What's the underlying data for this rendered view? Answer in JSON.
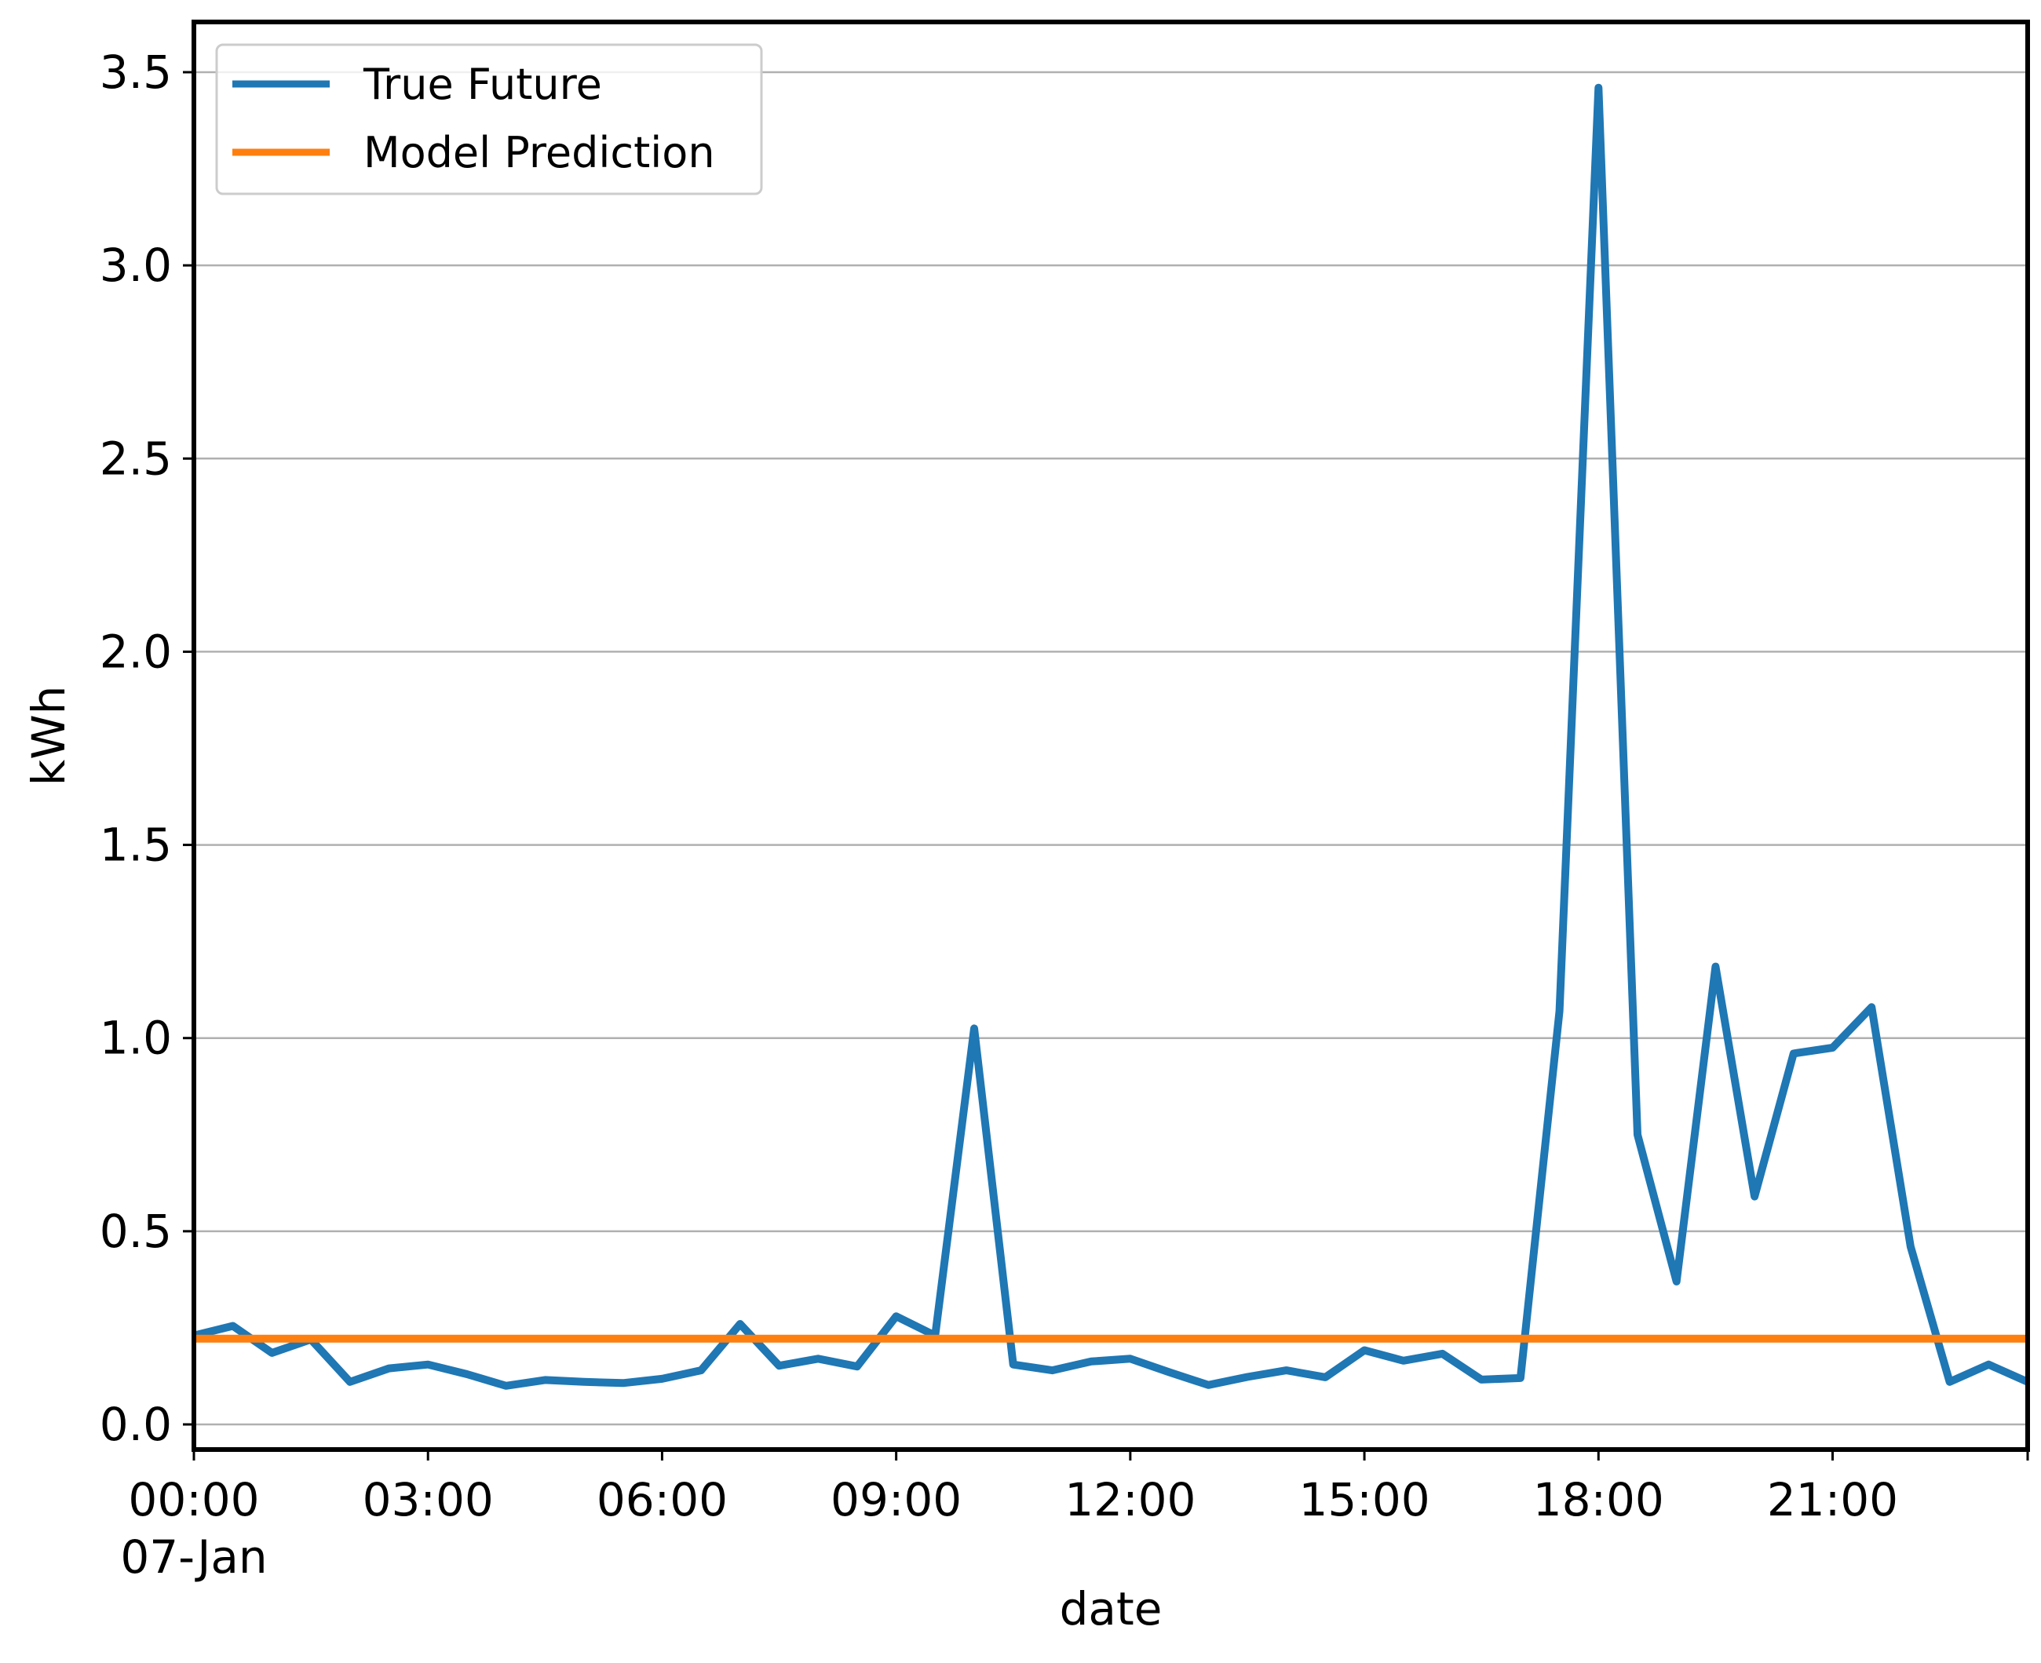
{
  "chart_data": {
    "type": "line",
    "title": "",
    "xlabel": "date",
    "ylabel": "kWh",
    "x_tick_labels": [
      "00:00",
      "03:00",
      "06:00",
      "09:00",
      "12:00",
      "15:00",
      "18:00",
      "21:00"
    ],
    "x_tick_sublabel": "07-Jan",
    "x_tick_hours": [
      0,
      3,
      6,
      9,
      12,
      15,
      18,
      21
    ],
    "y_tick_labels": [
      "0.0",
      "0.5",
      "1.0",
      "1.5",
      "2.0",
      "2.5",
      "3.0",
      "3.5"
    ],
    "y_ticks": [
      0.0,
      0.5,
      1.0,
      1.5,
      2.0,
      2.5,
      3.0,
      3.5
    ],
    "xlim": [
      "07-Jan 00:00",
      "07-Jan 23:30"
    ],
    "ylim": [
      -0.065,
      3.63
    ],
    "grid": "horizontal",
    "legend_position": "upper left",
    "x": [
      "00:00",
      "00:30",
      "01:00",
      "01:30",
      "02:00",
      "02:30",
      "03:00",
      "03:30",
      "04:00",
      "04:30",
      "05:00",
      "05:30",
      "06:00",
      "06:30",
      "07:00",
      "07:30",
      "08:00",
      "08:30",
      "09:00",
      "09:30",
      "10:00",
      "10:30",
      "11:00",
      "11:30",
      "12:00",
      "12:30",
      "13:00",
      "13:30",
      "14:00",
      "14:30",
      "15:00",
      "15:30",
      "16:00",
      "16:30",
      "17:00",
      "17:30",
      "18:00",
      "18:30",
      "19:00",
      "19:30",
      "20:00",
      "20:30",
      "21:00",
      "21:30",
      "22:00",
      "22:30",
      "23:00",
      "23:30"
    ],
    "series": [
      {
        "name": "True Future",
        "color": "#1f77b4",
        "values": [
          0.23,
          0.255,
          0.185,
          0.22,
          0.11,
          0.145,
          0.155,
          0.13,
          0.1,
          0.115,
          0.11,
          0.107,
          0.118,
          0.14,
          0.26,
          0.152,
          0.17,
          0.15,
          0.28,
          0.23,
          1.025,
          0.155,
          0.14,
          0.163,
          0.17,
          0.135,
          0.102,
          0.123,
          0.14,
          0.122,
          0.192,
          0.165,
          0.183,
          0.116,
          0.12,
          1.07,
          3.46,
          0.75,
          0.37,
          1.185,
          0.59,
          0.96,
          0.975,
          1.08,
          0.46,
          0.11,
          0.155,
          0.11
        ]
      },
      {
        "name": "Model Prediction",
        "color": "#ff7f0e",
        "values": [
          0.222,
          0.222,
          0.222,
          0.222,
          0.222,
          0.222,
          0.222,
          0.222,
          0.222,
          0.222,
          0.222,
          0.222,
          0.222,
          0.222,
          0.222,
          0.222,
          0.222,
          0.222,
          0.222,
          0.222,
          0.222,
          0.222,
          0.222,
          0.222,
          0.222,
          0.222,
          0.222,
          0.222,
          0.222,
          0.222,
          0.222,
          0.222,
          0.222,
          0.222,
          0.222,
          0.222,
          0.222,
          0.222,
          0.222,
          0.222,
          0.222,
          0.222,
          0.222,
          0.222,
          0.222,
          0.222,
          0.222,
          0.222
        ]
      }
    ]
  }
}
